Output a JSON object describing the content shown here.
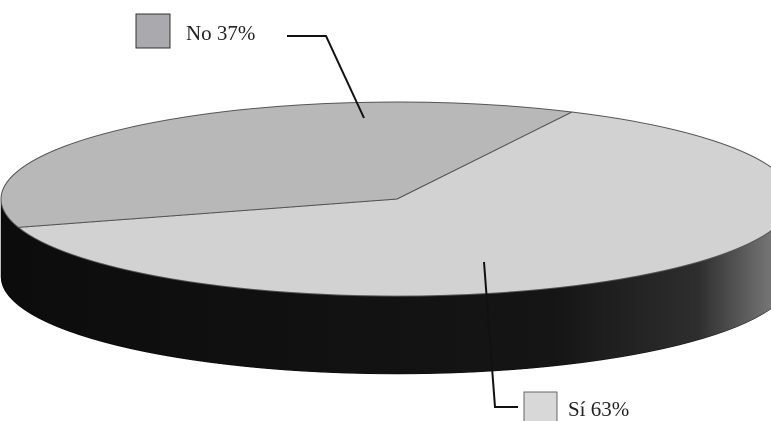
{
  "chart_data": {
    "type": "pie",
    "title": "",
    "categories": [
      "No",
      "Sí"
    ],
    "values": [
      37,
      63
    ],
    "labels": [
      "No 37%",
      "Sí 63%"
    ],
    "colors": {
      "No": "#b8b8b8",
      "Sí": "#d2d2d2",
      "side": "#141414",
      "outline": "#555555",
      "legend_no": "#a9a9ae",
      "legend_si": "#d8d8d8"
    }
  }
}
